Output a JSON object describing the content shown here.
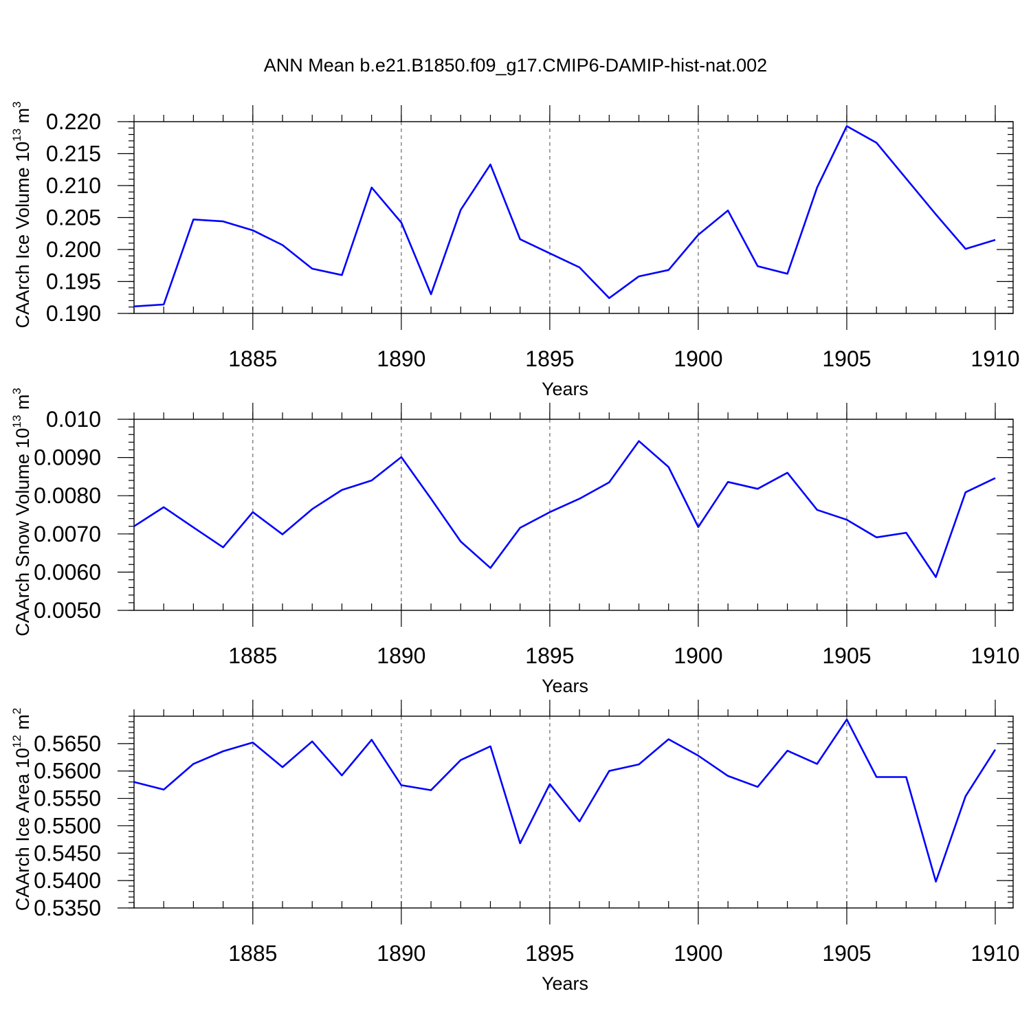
{
  "title": "ANN Mean b.e21.B1850.f09_g17.CMIP6-DAMIP-hist-nat.002",
  "colors": {
    "series": "#0000ff",
    "axes": "#000000",
    "grid": "#666666"
  },
  "chart_data": [
    {
      "type": "line",
      "ylabel": "CAArch Ice Volume 10",
      "ylabel_exp": "13",
      "ylabel_unit": " m",
      "ylabel_unit_exp": "3",
      "xlabel": "Years",
      "xlim": [
        1881,
        1910
      ],
      "ylim": [
        0.19,
        0.22
      ],
      "y_tick_values": [
        0.19,
        0.195,
        0.2,
        0.205,
        0.21,
        0.215,
        0.22
      ],
      "y_tick_labels": [
        "0.190",
        "0.195",
        "0.200",
        "0.205",
        "0.210",
        "0.215",
        "0.220"
      ],
      "x_tick_values": [
        1885,
        1890,
        1895,
        1900,
        1905,
        1910
      ],
      "x_tick_labels": [
        "1885",
        "1890",
        "1895",
        "1900",
        "1905",
        "1910"
      ],
      "grid": "vertical dashed at x major ticks",
      "x": [
        1881,
        1882,
        1883,
        1884,
        1885,
        1886,
        1887,
        1888,
        1889,
        1890,
        1891,
        1892,
        1893,
        1894,
        1895,
        1896,
        1897,
        1898,
        1899,
        1900,
        1901,
        1902,
        1903,
        1904,
        1905,
        1906,
        1907,
        1908,
        1909,
        1910
      ],
      "values": [
        0.1911,
        0.1914,
        0.2047,
        0.2044,
        0.203,
        0.2007,
        0.197,
        0.196,
        0.2097,
        0.2042,
        0.193,
        0.2062,
        0.2133,
        0.2016,
        0.1994,
        0.1972,
        0.1924,
        0.1958,
        0.1968,
        0.2023,
        0.2061,
        0.1974,
        0.1962,
        0.2097,
        0.2193,
        0.2167,
        0.2111,
        0.2055,
        0.2001,
        0.2015
      ]
    },
    {
      "type": "line",
      "ylabel": "CAArch Snow Volume 10",
      "ylabel_exp": "13",
      "ylabel_unit": " m",
      "ylabel_unit_exp": "3",
      "xlabel": "Years",
      "xlim": [
        1881,
        1910
      ],
      "ylim": [
        0.005,
        0.01
      ],
      "y_tick_values": [
        0.005,
        0.006,
        0.007,
        0.008,
        0.009,
        0.01
      ],
      "y_tick_labels": [
        "0.0050",
        "0.0060",
        "0.0070",
        "0.0080",
        "0.0090",
        "0.010"
      ],
      "x_tick_values": [
        1885,
        1890,
        1895,
        1900,
        1905,
        1910
      ],
      "x_tick_labels": [
        "1885",
        "1890",
        "1895",
        "1900",
        "1905",
        "1910"
      ],
      "grid": "vertical dashed at x major ticks",
      "x": [
        1881,
        1882,
        1883,
        1884,
        1885,
        1886,
        1887,
        1888,
        1889,
        1890,
        1891,
        1892,
        1893,
        1894,
        1895,
        1896,
        1897,
        1898,
        1899,
        1900,
        1901,
        1902,
        1903,
        1904,
        1905,
        1906,
        1907,
        1908,
        1909,
        1910
      ],
      "values": [
        0.0072,
        0.0077,
        0.00717,
        0.00665,
        0.00757,
        0.00699,
        0.00765,
        0.00815,
        0.0084,
        0.00901,
        0.00792,
        0.0068,
        0.00611,
        0.00716,
        0.00757,
        0.00792,
        0.00835,
        0.00943,
        0.00875,
        0.00718,
        0.00836,
        0.00818,
        0.0086,
        0.00763,
        0.00737,
        0.00691,
        0.00703,
        0.00587,
        0.00809,
        0.00846
      ]
    },
    {
      "type": "line",
      "ylabel": "CAArch Ice Area 10",
      "ylabel_exp": "12",
      "ylabel_unit": " m",
      "ylabel_unit_exp": "2",
      "xlabel": "Years",
      "xlim": [
        1881,
        1910
      ],
      "ylim": [
        0.535,
        0.57
      ],
      "y_tick_values": [
        0.535,
        0.54,
        0.545,
        0.55,
        0.555,
        0.56,
        0.565
      ],
      "y_tick_labels": [
        "0.5350",
        "0.5400",
        "0.5450",
        "0.5500",
        "0.5550",
        "0.5600",
        "0.5650"
      ],
      "x_tick_values": [
        1885,
        1890,
        1895,
        1900,
        1905,
        1910
      ],
      "x_tick_labels": [
        "1885",
        "1890",
        "1895",
        "1900",
        "1905",
        "1910"
      ],
      "grid": "vertical dashed at x major ticks",
      "x": [
        1881,
        1882,
        1883,
        1884,
        1885,
        1886,
        1887,
        1888,
        1889,
        1890,
        1891,
        1892,
        1893,
        1894,
        1895,
        1896,
        1897,
        1898,
        1899,
        1900,
        1901,
        1902,
        1903,
        1904,
        1905,
        1906,
        1907,
        1908,
        1909,
        1910
      ],
      "values": [
        0.558,
        0.5566,
        0.5613,
        0.5636,
        0.5652,
        0.5607,
        0.5654,
        0.5592,
        0.5657,
        0.5574,
        0.5565,
        0.562,
        0.5645,
        0.5468,
        0.5576,
        0.5508,
        0.56,
        0.5612,
        0.5658,
        0.5628,
        0.5591,
        0.5571,
        0.5637,
        0.5613,
        0.5694,
        0.5589,
        0.5589,
        0.5398,
        0.5554,
        0.5639
      ]
    }
  ]
}
